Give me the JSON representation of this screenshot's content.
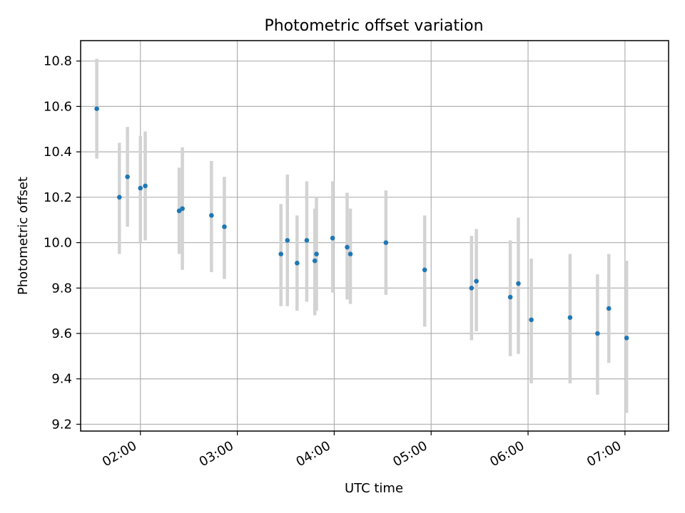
{
  "chart_data": {
    "type": "scatter",
    "title": "Photometric offset variation",
    "xlabel": "UTC time",
    "ylabel": "Photometric offset",
    "x_unit": "UTC time (HH:MM)",
    "xlim": [
      "01:23",
      "07:27"
    ],
    "ylim": [
      9.17,
      10.89
    ],
    "x_ticks": [
      "02:00",
      "03:00",
      "04:00",
      "05:00",
      "06:00",
      "07:00"
    ],
    "y_ticks": [
      9.2,
      9.4,
      9.6,
      9.8,
      10.0,
      10.2,
      10.4,
      10.6,
      10.8
    ],
    "y_tick_labels": [
      "9.2",
      "9.4",
      "9.6",
      "9.8",
      "10.0",
      "10.2",
      "10.4",
      "10.6",
      "10.8"
    ],
    "grid": true,
    "colors": {
      "points": "#1f77b4",
      "errorbars": "#d3d3d3",
      "grid": "#b0b0b0"
    },
    "points": [
      {
        "x": "01:33",
        "y": 10.59,
        "y_low": 10.37,
        "y_high": 10.81
      },
      {
        "x": "01:47",
        "y": 10.2,
        "y_low": 9.95,
        "y_high": 10.44
      },
      {
        "x": "01:52",
        "y": 10.29,
        "y_low": 10.07,
        "y_high": 10.51
      },
      {
        "x": "02:00",
        "y": 10.24,
        "y_low": 10.0,
        "y_high": 10.47
      },
      {
        "x": "02:03",
        "y": 10.25,
        "y_low": 10.01,
        "y_high": 10.49
      },
      {
        "x": "02:24",
        "y": 10.14,
        "y_low": 9.95,
        "y_high": 10.33
      },
      {
        "x": "02:26",
        "y": 10.15,
        "y_low": 9.88,
        "y_high": 10.42
      },
      {
        "x": "02:44",
        "y": 10.12,
        "y_low": 9.87,
        "y_high": 10.36
      },
      {
        "x": "02:52",
        "y": 10.07,
        "y_low": 9.84,
        "y_high": 10.29
      },
      {
        "x": "03:27",
        "y": 9.95,
        "y_low": 9.72,
        "y_high": 10.17
      },
      {
        "x": "03:31",
        "y": 10.01,
        "y_low": 9.72,
        "y_high": 10.3
      },
      {
        "x": "03:37",
        "y": 9.91,
        "y_low": 9.7,
        "y_high": 10.12
      },
      {
        "x": "03:43",
        "y": 10.01,
        "y_low": 9.74,
        "y_high": 10.27
      },
      {
        "x": "03:48",
        "y": 9.92,
        "y_low": 9.68,
        "y_high": 10.15
      },
      {
        "x": "03:49",
        "y": 9.95,
        "y_low": 9.7,
        "y_high": 10.2
      },
      {
        "x": "03:59",
        "y": 10.02,
        "y_low": 9.78,
        "y_high": 10.27
      },
      {
        "x": "04:08",
        "y": 9.98,
        "y_low": 9.75,
        "y_high": 10.22
      },
      {
        "x": "04:10",
        "y": 9.95,
        "y_low": 9.73,
        "y_high": 10.15
      },
      {
        "x": "04:32",
        "y": 10.0,
        "y_low": 9.77,
        "y_high": 10.23
      },
      {
        "x": "04:56",
        "y": 9.88,
        "y_low": 9.63,
        "y_high": 10.12
      },
      {
        "x": "05:25",
        "y": 9.8,
        "y_low": 9.57,
        "y_high": 10.03
      },
      {
        "x": "05:28",
        "y": 9.83,
        "y_low": 9.61,
        "y_high": 10.06
      },
      {
        "x": "05:49",
        "y": 9.76,
        "y_low": 9.5,
        "y_high": 10.01
      },
      {
        "x": "05:54",
        "y": 9.82,
        "y_low": 9.51,
        "y_high": 10.11
      },
      {
        "x": "06:02",
        "y": 9.66,
        "y_low": 9.38,
        "y_high": 9.93
      },
      {
        "x": "06:26",
        "y": 9.67,
        "y_low": 9.38,
        "y_high": 9.95
      },
      {
        "x": "06:43",
        "y": 9.6,
        "y_low": 9.33,
        "y_high": 9.86
      },
      {
        "x": "06:50",
        "y": 9.71,
        "y_low": 9.47,
        "y_high": 9.95
      },
      {
        "x": "07:01",
        "y": 9.58,
        "y_low": 9.25,
        "y_high": 9.92
      }
    ]
  }
}
